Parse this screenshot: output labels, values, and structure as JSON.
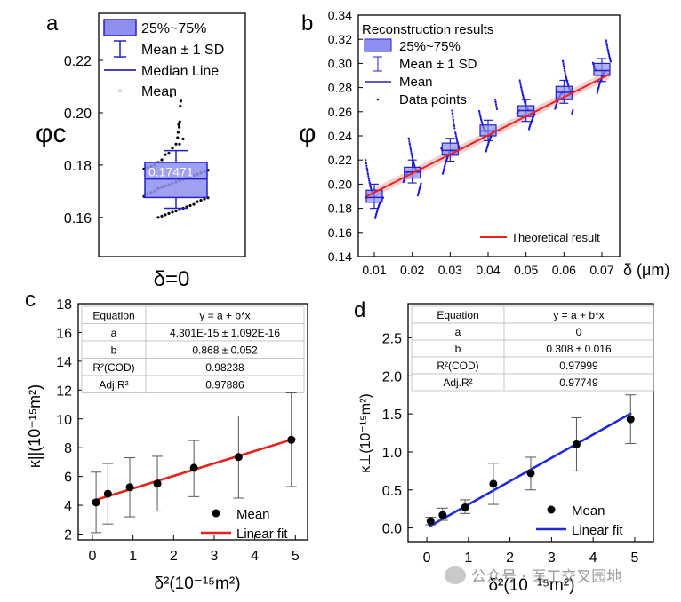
{
  "chart_data": [
    {
      "panel": "a",
      "type": "box",
      "ylabel": "φc",
      "ylim": [
        0.145,
        0.238
      ],
      "yticks": [
        0.16,
        0.18,
        0.2,
        0.22
      ],
      "category": "δ=0",
      "box": {
        "q1": 0.1676,
        "q3": 0.181,
        "median": 0.1747,
        "mean": 0.17471,
        "whisker_low": 0.1635,
        "whisker_high": 0.1855,
        "mean_label": "0.17471"
      },
      "points": [
        0.2065,
        0.2045,
        0.2025,
        0.1965,
        0.1945,
        0.1955,
        0.1925,
        0.1905,
        0.19,
        0.188,
        0.188,
        0.1865,
        0.1845,
        0.184,
        0.182,
        0.181,
        0.18,
        0.1795,
        0.179,
        0.1785,
        0.178,
        0.1775,
        0.177,
        0.1765,
        0.176,
        0.1755,
        0.175,
        0.1745,
        0.174,
        0.1735,
        0.173,
        0.1725,
        0.172,
        0.1715,
        0.171,
        0.17,
        0.1695,
        0.169,
        0.168,
        0.1675,
        0.167,
        0.1665,
        0.166,
        0.165,
        0.1645,
        0.164,
        0.1635,
        0.163,
        0.1625,
        0.162,
        0.1615,
        0.161,
        0.1605,
        0.16
      ],
      "legend": [
        "25%~75%",
        "Mean ± 1 SD",
        "Median Line",
        "Mean"
      ]
    },
    {
      "panel": "b",
      "type": "box",
      "ylabel": "φ",
      "xlabel": "δ (μm)",
      "ylim": [
        0.14,
        0.34
      ],
      "yticks": [
        0.14,
        0.16,
        0.18,
        0.2,
        0.22,
        0.24,
        0.26,
        0.28,
        0.3,
        0.32,
        0.34
      ],
      "x": [
        0.01,
        0.02,
        0.03,
        0.04,
        0.05,
        0.06,
        0.07
      ],
      "q1": [
        0.185,
        0.205,
        0.224,
        0.24,
        0.256,
        0.27,
        0.29
      ],
      "q3": [
        0.195,
        0.214,
        0.234,
        0.249,
        0.265,
        0.281,
        0.3
      ],
      "mean": [
        0.189,
        0.21,
        0.228,
        0.244,
        0.261,
        0.276,
        0.294
      ],
      "sd_low": [
        0.18,
        0.201,
        0.219,
        0.236,
        0.252,
        0.267,
        0.285
      ],
      "sd_high": [
        0.2,
        0.22,
        0.238,
        0.253,
        0.27,
        0.286,
        0.304
      ],
      "points_range_low": [
        0.17,
        0.19,
        0.208,
        0.226,
        0.245,
        0.258,
        0.274
      ],
      "points_range_high": [
        0.22,
        0.238,
        0.262,
        0.272,
        0.286,
        0.302,
        0.32
      ],
      "theoretical": {
        "x": [
          0.008,
          0.072
        ],
        "y": [
          0.19,
          0.291
        ],
        "name": "Theoretical result",
        "color": "#e8211e"
      },
      "legend_title": "Reconstruction results",
      "legend": [
        "25%~75%",
        "Mean ± 1 SD",
        "Mean",
        "Data points"
      ]
    },
    {
      "panel": "c",
      "type": "scatter",
      "ylabel": "κ||(10⁻¹⁵m²)",
      "xlabel": "δ²(10⁻¹⁵m²)",
      "xlim": [
        -0.35,
        5.3
      ],
      "ylim": [
        1.6,
        18.0
      ],
      "xticks": [
        0,
        1,
        2,
        3,
        4,
        5
      ],
      "yticks": [
        2,
        4,
        6,
        8,
        10,
        12,
        14,
        16,
        18
      ],
      "x": [
        0.09,
        0.38,
        0.92,
        1.6,
        2.5,
        3.6,
        4.9
      ],
      "y": [
        4.2,
        4.8,
        5.25,
        5.5,
        6.6,
        7.35,
        8.55
      ],
      "err_low": [
        2.1,
        2.7,
        3.2,
        3.6,
        4.6,
        4.5,
        5.3
      ],
      "err_high": [
        6.3,
        6.9,
        7.3,
        7.4,
        8.5,
        10.2,
        11.8
      ],
      "fit": {
        "x": [
          0.0,
          5.0
        ],
        "y": [
          4.3,
          8.64
        ],
        "name": "Linear fit",
        "color": "#e8211e"
      },
      "series_point_name": "Mean",
      "table": {
        "headers": [
          "Equation",
          "y = a + b*x"
        ],
        "rows": [
          [
            "a",
            "4.301E-15 ± 1.092E-16"
          ],
          [
            "b",
            "0.868 ± 0.052"
          ],
          [
            "R²(COD)",
            "0.98238"
          ],
          [
            "Adj.R²",
            "0.97886"
          ]
        ]
      }
    },
    {
      "panel": "d",
      "type": "scatter",
      "ylabel": "κ⊥(10⁻¹⁵m²)",
      "xlabel": "δ²(10⁻¹⁵m²)",
      "xlim": [
        -0.45,
        5.45
      ],
      "ylim": [
        -0.18,
        2.95
      ],
      "xticks": [
        0,
        1,
        2,
        3,
        4,
        5
      ],
      "yticks": [
        0.0,
        0.5,
        1.0,
        1.5,
        2.0,
        2.5
      ],
      "x": [
        0.09,
        0.38,
        0.92,
        1.6,
        2.5,
        3.6,
        4.9
      ],
      "y": [
        0.09,
        0.17,
        0.27,
        0.58,
        0.72,
        1.1,
        1.43
      ],
      "err_low": [
        0.04,
        0.1,
        0.19,
        0.31,
        0.5,
        0.75,
        1.11
      ],
      "err_high": [
        0.14,
        0.26,
        0.37,
        0.85,
        0.93,
        1.45,
        1.75
      ],
      "fit": {
        "x": [
          0.06,
          4.92
        ],
        "y": [
          0.02,
          1.51
        ],
        "name": "Linear fit",
        "color": "#1f2bd8"
      },
      "series_point_name": "Mean",
      "table": {
        "headers": [
          "Equation",
          "y = a + b*x"
        ],
        "rows": [
          [
            "a",
            "0"
          ],
          [
            "b",
            "0.308 ± 0.016"
          ],
          [
            "R²(COD)",
            "0.97999"
          ],
          [
            "Adj.R²",
            "0.97749"
          ]
        ]
      }
    }
  ],
  "panel_labels": {
    "a": "a",
    "b": "b",
    "c": "c",
    "d": "d"
  },
  "watermark": "公众号 · 医工交叉园地",
  "colors": {
    "box_fill": "#8f8ff0",
    "box_stroke": "#2222c8",
    "point": "#1a1ad8"
  }
}
